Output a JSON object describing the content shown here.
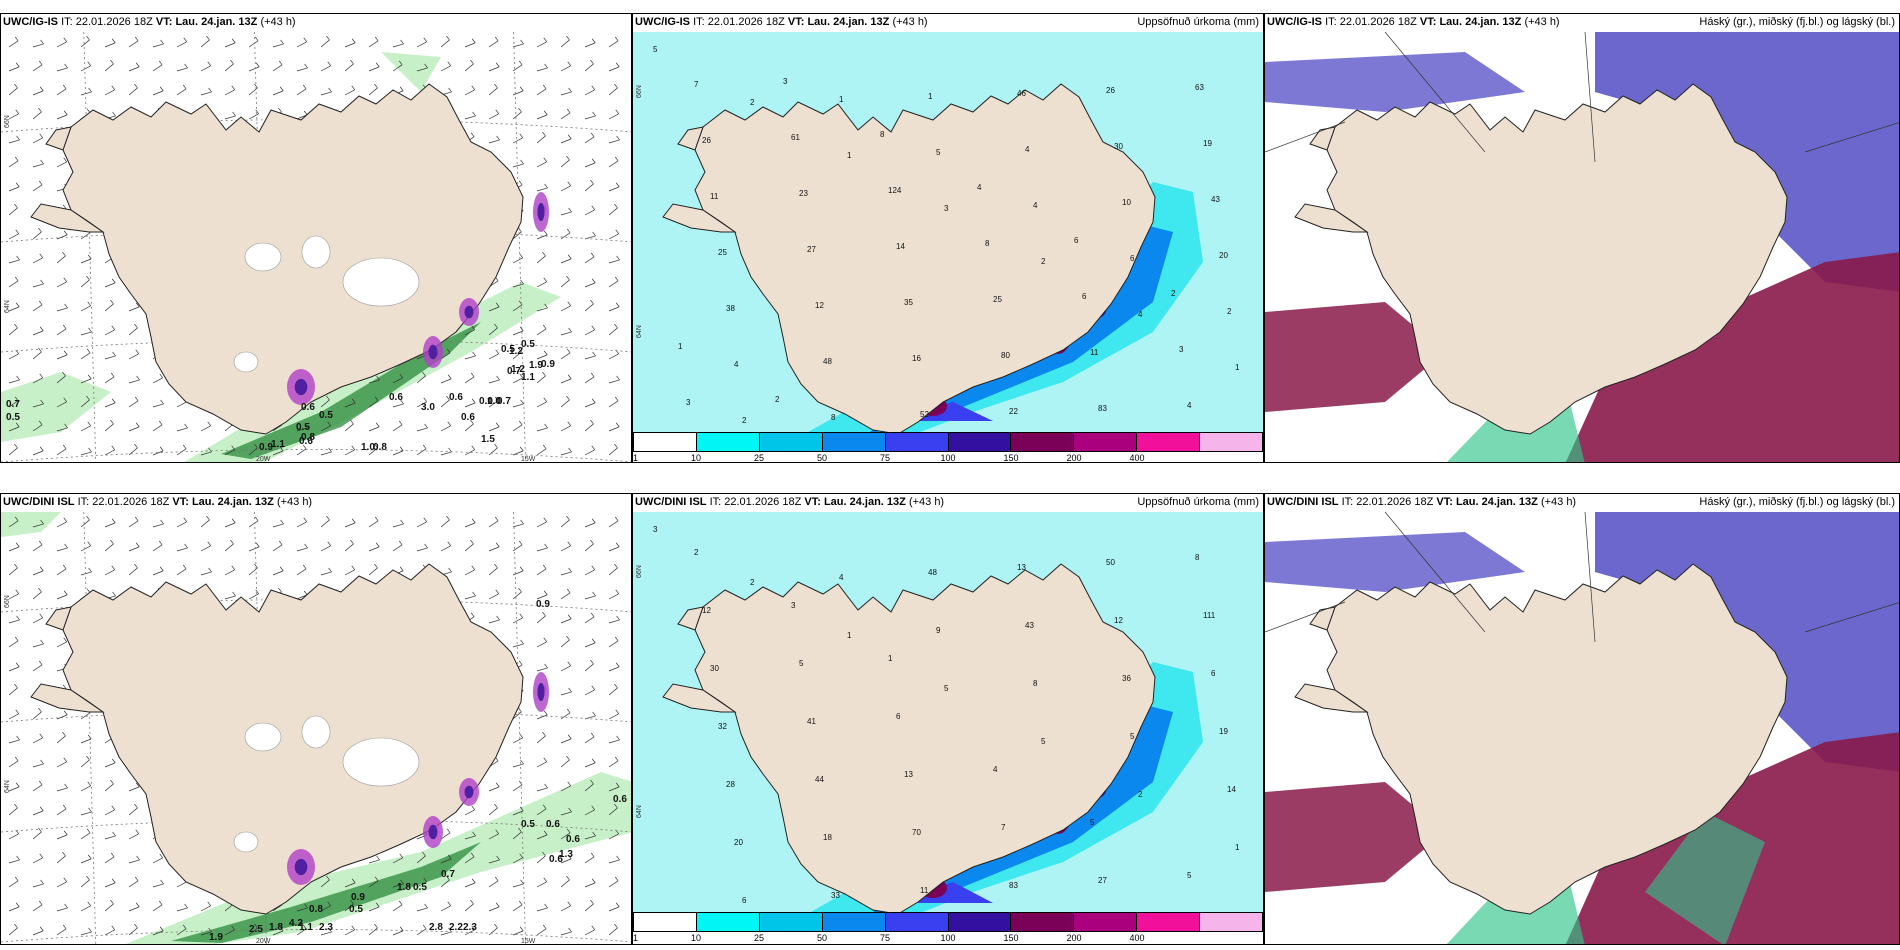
{
  "panels": [
    {
      "id": "tl",
      "model": "UWC/IG-IS",
      "it_label": "IT:",
      "it_value": "22.01.2026 18Z",
      "vt_label": "VT:",
      "vt_value": "Lau. 24.jan. 13Z",
      "lead": "(+43 h)",
      "subtitle": "",
      "axis_labels": [
        "66N",
        "64N",
        "20W",
        "15W"
      ],
      "values": [
        "0.7",
        "0.5",
        "0.6",
        "0.5",
        "0.5",
        "0.8",
        "0.9",
        "1.1",
        "0.6",
        "0.6",
        "3.0",
        "0.6",
        "0.6",
        "0.0",
        "0.7",
        "1.0",
        "0.5",
        "1.2",
        "1.2",
        "1.9",
        "0.8",
        "1.0",
        "0.5",
        "0.7",
        "1.1",
        "0.9",
        "1.5"
      ]
    },
    {
      "id": "tm",
      "model": "UWC/IG-IS",
      "it_label": "IT:",
      "it_value": "22.01.2026 18Z",
      "vt_label": "VT:",
      "vt_value": "Lau. 24.jan. 13Z",
      "lead": "(+43 h)",
      "subtitle": "Uppsöfnuð úrkoma (mm)",
      "axis_labels": [
        "66N",
        "64N"
      ],
      "values": [
        "5",
        "2",
        "1",
        "3",
        "2",
        "4",
        "1",
        "2",
        "1",
        "5",
        "4",
        "6",
        "2",
        "4",
        "8",
        "1",
        "4",
        "10",
        "20",
        "38",
        "48",
        "52",
        "46",
        "30",
        "43",
        "25",
        "12",
        "16",
        "22",
        "26",
        "19",
        "11",
        "27",
        "35",
        "80",
        "83",
        "63",
        "26",
        "23",
        "14",
        "25",
        "11",
        "4",
        "7",
        "61",
        "124",
        "8",
        "6",
        "3",
        "3",
        "3",
        "8",
        "4",
        "6",
        "2",
        "1",
        "2"
      ]
    },
    {
      "id": "tr",
      "model": "UWC/IG-IS",
      "it_label": "IT:",
      "it_value": "22.01.2026 18Z",
      "vt_label": "VT:",
      "vt_value": "Lau. 24.jan. 13Z",
      "lead": "(+43 h)",
      "subtitle": "Háský (gr.), miðský (fj.bl.) og lágský (bl.)"
    },
    {
      "id": "bl",
      "model": "UWC/DINI ISL",
      "it_label": "IT:",
      "it_value": "22.01.2026 18Z",
      "vt_label": "VT:",
      "vt_value": "Lau. 24.jan. 13Z",
      "lead": "(+43 h)",
      "subtitle": "",
      "axis_labels": [
        "66N",
        "64N",
        "20W",
        "15W"
      ],
      "values": [
        "0.6",
        "0.9",
        "0.5",
        "0.6",
        "0.6",
        "0.6",
        "1.3",
        "0.7",
        "1.8",
        "0.5",
        "0.5",
        "2.8",
        "2.2",
        "2.3",
        "0.9",
        "2.5",
        "1.8",
        "4.2",
        "2.3",
        "1.9",
        "0.8",
        "1.1"
      ]
    },
    {
      "id": "bm",
      "model": "UWC/DINI ISL",
      "it_label": "IT:",
      "it_value": "22.01.2026 18Z",
      "vt_label": "VT:",
      "vt_value": "Lau. 24.jan. 13Z",
      "lead": "(+43 h)",
      "subtitle": "Uppsöfnuð úrkoma (mm)",
      "axis_labels": [
        "66N",
        "64N"
      ],
      "values": [
        "3",
        "2",
        "1",
        "5",
        "5",
        "2",
        "1",
        "6",
        "4",
        "9",
        "8",
        "5",
        "14",
        "20",
        "33",
        "48",
        "43",
        "36",
        "19",
        "28",
        "18",
        "11",
        "13",
        "12",
        "6",
        "32",
        "44",
        "70",
        "83",
        "50",
        "111",
        "30",
        "41",
        "13",
        "7",
        "27",
        "8",
        "12",
        "5",
        "6",
        "4",
        "5",
        "5",
        "2",
        "3",
        "1"
      ]
    },
    {
      "id": "br",
      "model": "UWC/DINI ISL",
      "it_label": "IT:",
      "it_value": "22.01.2026 18Z",
      "vt_label": "VT:",
      "vt_value": "Lau. 24.jan. 13Z",
      "lead": "(+43 h)",
      "subtitle": "Háský (gr.), miðský (fj.bl.) og lágský (bl.)"
    }
  ],
  "colorbar": {
    "labels": [
      "1",
      "10",
      "25",
      "50",
      "75",
      "100",
      "150",
      "200",
      "400"
    ],
    "colors": [
      "#ffffff",
      "#00f5f5",
      "#00c4e8",
      "#0a88ee",
      "#3a3ff0",
      "#3310a0",
      "#7a0058",
      "#aa007e",
      "#f0109a",
      "#f5b5ea"
    ]
  },
  "colors": {
    "land": "#eee0d0",
    "sea_light": "#aef4f4",
    "sea_mid": "#3ee8ee",
    "precip_purple": "#b040c8",
    "cloud_high": "#2fc48a",
    "cloud_mid": "#5c56c8",
    "cloud_low": "#8a1a4a",
    "green_light": "#c8f0c8",
    "green_dark": "#2a8a3a"
  }
}
